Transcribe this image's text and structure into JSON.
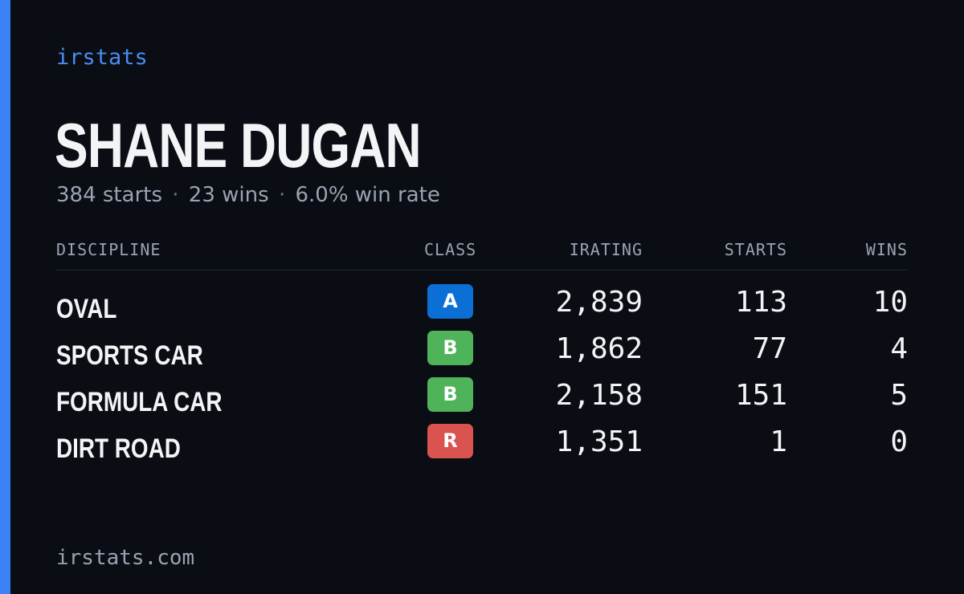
{
  "brand": "irstats",
  "driver": {
    "name": "SHANE DUGAN",
    "starts_text": "384 starts",
    "wins_text": "23 wins",
    "win_rate_text": "6.0% win rate",
    "separator": "·"
  },
  "table": {
    "headers": {
      "discipline": "DISCIPLINE",
      "class": "CLASS",
      "irating": "IRATING",
      "starts": "STARTS",
      "wins": "WINS"
    },
    "rows": [
      {
        "discipline": "OVAL",
        "class": "A",
        "class_color": "#0b6fd6",
        "irating": "2,839",
        "starts": "113",
        "wins": "10"
      },
      {
        "discipline": "SPORTS CAR",
        "class": "B",
        "class_color": "#4fb35a",
        "irating": "1,862",
        "starts": "77",
        "wins": "4"
      },
      {
        "discipline": "FORMULA CAR",
        "class": "B",
        "class_color": "#4fb35a",
        "irating": "2,158",
        "starts": "151",
        "wins": "5"
      },
      {
        "discipline": "DIRT ROAD",
        "class": "R",
        "class_color": "#d9534f",
        "irating": "1,351",
        "starts": "1",
        "wins": "0"
      }
    ]
  },
  "footer": "irstats.com",
  "colors": {
    "accent": "#3b82f6",
    "brand_text": "#4a8df2",
    "background": "#0a0d14"
  }
}
